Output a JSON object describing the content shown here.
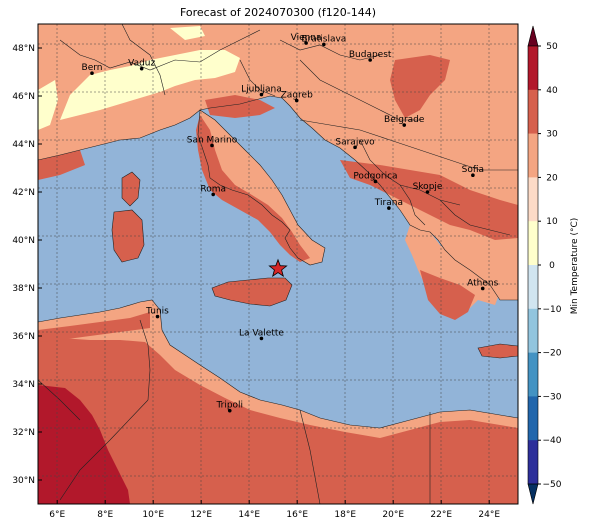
{
  "title": "Forecast of 2024070300 (f120-144)",
  "colorbar": {
    "label": "Min Temperature (°C)",
    "ticks": [
      "50",
      "40",
      "30",
      "20",
      "10",
      "0",
      "−10",
      "−20",
      "−30",
      "−40",
      "−50"
    ],
    "colors": [
      "#67001f",
      "#b2182b",
      "#d6604d",
      "#f4a582",
      "#fddbc7",
      "#ffffcc",
      "#d1e5f0",
      "#92c5de",
      "#4393c3",
      "#2166ac",
      "#2d2f9a",
      "#053061"
    ]
  },
  "map": {
    "lat_labels": [
      "48°N",
      "46°N",
      "44°N",
      "42°N",
      "40°N",
      "38°N",
      "36°N",
      "34°N",
      "32°N",
      "30°N"
    ],
    "lon_labels": [
      "6°E",
      "8°E",
      "10°E",
      "12°E",
      "14°E",
      "16°E",
      "18°E",
      "20°E",
      "22°E",
      "24°E"
    ],
    "cities": [
      {
        "name": "Vienna",
        "lon": 16.37,
        "lat": 48.21
      },
      {
        "name": "Bratislava",
        "lon": 17.11,
        "lat": 48.15
      },
      {
        "name": "Budapest",
        "lon": 19.04,
        "lat": 47.5
      },
      {
        "name": "Bern",
        "lon": 7.45,
        "lat": 46.95
      },
      {
        "name": "Vaduz",
        "lon": 9.52,
        "lat": 47.14
      },
      {
        "name": "Ljubljana",
        "lon": 14.51,
        "lat": 46.06
      },
      {
        "name": "Zagreb",
        "lon": 15.98,
        "lat": 45.81
      },
      {
        "name": "Belgrade",
        "lon": 20.46,
        "lat": 44.79
      },
      {
        "name": "San Marino",
        "lon": 12.45,
        "lat": 43.94
      },
      {
        "name": "Sarajevo",
        "lon": 18.41,
        "lat": 43.86
      },
      {
        "name": "Sofia",
        "lon": 23.32,
        "lat": 42.7
      },
      {
        "name": "Podgorica",
        "lon": 19.26,
        "lat": 42.44
      },
      {
        "name": "Skopje",
        "lon": 21.43,
        "lat": 42.0
      },
      {
        "name": "Roma",
        "lon": 12.5,
        "lat": 41.9
      },
      {
        "name": "Tirana",
        "lon": 19.82,
        "lat": 41.33
      },
      {
        "name": "Athens",
        "lon": 23.73,
        "lat": 37.98
      },
      {
        "name": "Tunis",
        "lon": 10.18,
        "lat": 36.81
      },
      {
        "name": "La Valette",
        "lon": 14.51,
        "lat": 35.9
      },
      {
        "name": "Tripoli",
        "lon": 13.19,
        "lat": 32.89
      }
    ],
    "star": {
      "lon": 15.2,
      "lat": 38.8
    }
  }
}
